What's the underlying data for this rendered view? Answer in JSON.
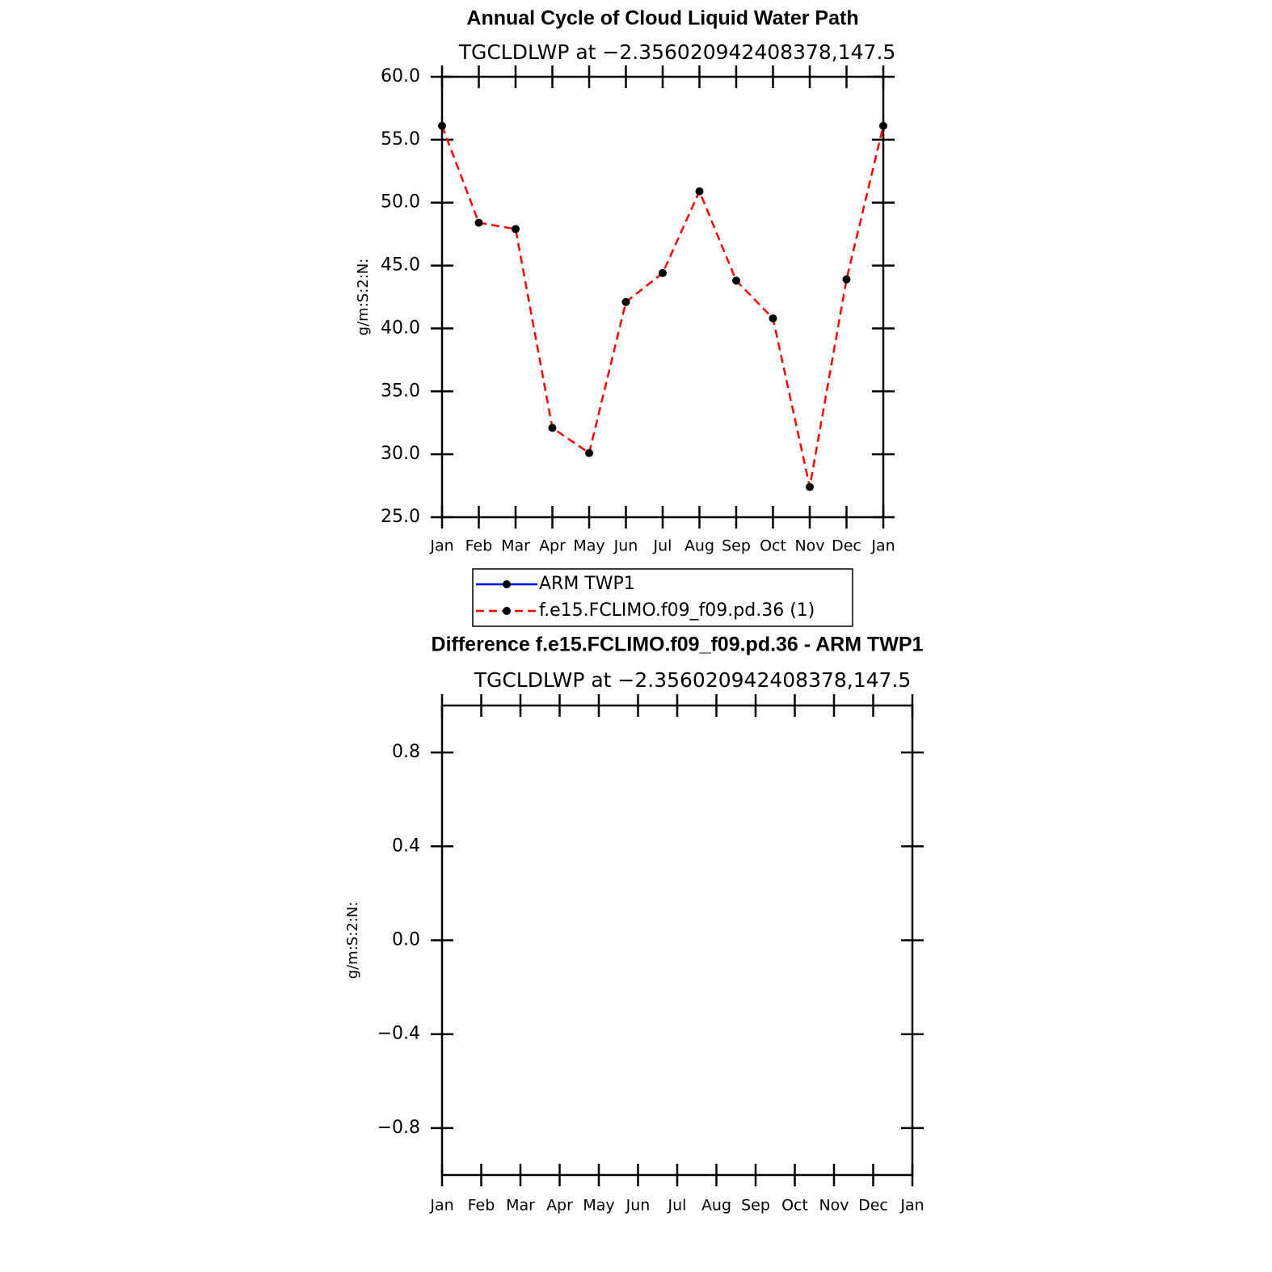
{
  "chart_data": [
    {
      "type": "line",
      "title": "Annual Cycle of Cloud Liquid Water Path",
      "subtitle": "TGCLDLWP at −2.356020942408378,147.5",
      "y_label": "g/m:S:2:N:",
      "categories": [
        "Jan",
        "Feb",
        "Mar",
        "Apr",
        "May",
        "Jun",
        "Jul",
        "Aug",
        "Sep",
        "Oct",
        "Nov",
        "Dec",
        "Jan"
      ],
      "ylim": [
        25,
        60
      ],
      "yticks": [
        {
          "value": 25,
          "label": "25.0"
        },
        {
          "value": 30,
          "label": "30.0"
        },
        {
          "value": 35,
          "label": "35.0"
        },
        {
          "value": 40,
          "label": "40.0"
        },
        {
          "value": 45,
          "label": "45.0"
        },
        {
          "value": 50,
          "label": "50.0"
        },
        {
          "value": 55,
          "label": "55.0"
        },
        {
          "value": 60,
          "label": "60.0"
        }
      ],
      "marker_color": "#000000",
      "series": [
        {
          "name": "ARM TWP1",
          "color": "#0000ff",
          "dashed": false,
          "values": [
            null,
            null,
            null,
            null,
            null,
            null,
            null,
            null,
            null,
            null,
            null,
            null,
            null
          ]
        },
        {
          "name": "f.e15.FCLIMO.f09_f09.pd.36 (1)",
          "color": "#ff0000",
          "dashed": true,
          "values": [
            56.1,
            48.4,
            47.9,
            32.1,
            30.1,
            42.1,
            44.4,
            50.9,
            43.8,
            40.8,
            27.4,
            43.9,
            56.1
          ]
        }
      ]
    },
    {
      "type": "line",
      "title": "Difference f.e15.FCLIMO.f09_f09.pd.36 - ARM TWP1",
      "subtitle": "TGCLDLWP at −2.356020942408378,147.5",
      "y_label": "g/m:S:2:N:",
      "categories": [
        "Jan",
        "Feb",
        "Mar",
        "Apr",
        "May",
        "Jun",
        "Jul",
        "Aug",
        "Sep",
        "Oct",
        "Nov",
        "Dec",
        "Jan"
      ],
      "ylim": [
        -1,
        1
      ],
      "yticks": [
        {
          "value": -0.8,
          "label": "−0.8"
        },
        {
          "value": -0.4,
          "label": "−0.4"
        },
        {
          "value": 0,
          "label": "0.0"
        },
        0.4,
        0.8
      ]
    }
  ]
}
